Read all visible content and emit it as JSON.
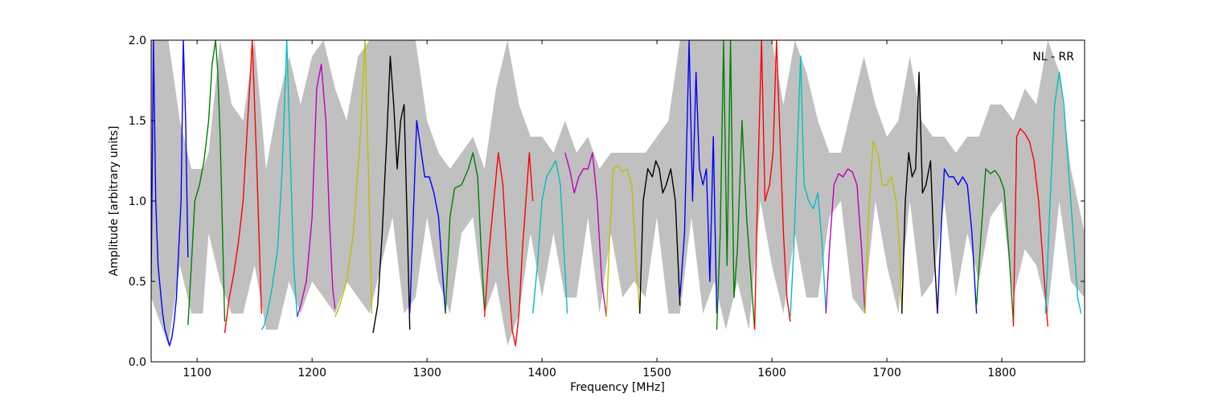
{
  "chart_data": {
    "type": "line",
    "title": "",
    "xlabel": "Frequency [MHz]",
    "ylabel": "Amplitude [arbitrary units]",
    "xlim": [
      1060,
      1872
    ],
    "ylim": [
      0.0,
      2.0
    ],
    "xticks": [
      1100,
      1200,
      1300,
      1400,
      1500,
      1600,
      1700,
      1800
    ],
    "xtick_labels": [
      "1100",
      "1200",
      "1300",
      "1400",
      "1500",
      "1600",
      "1700",
      "1800"
    ],
    "yticks": [
      0.0,
      0.5,
      1.0,
      1.5,
      2.0
    ],
    "ytick_labels": [
      "0.0",
      "0.5",
      "1.0",
      "1.5",
      "2.0"
    ],
    "grid": false,
    "annotation": "NL - RR",
    "annotation_position": "top-right",
    "background": {
      "color": "#c0c0c0",
      "x": [
        1060,
        1075,
        1085,
        1095,
        1105,
        1110,
        1120,
        1130,
        1140,
        1150,
        1160,
        1170,
        1180,
        1190,
        1200,
        1210,
        1220,
        1230,
        1240,
        1250,
        1260,
        1270,
        1280,
        1290,
        1300,
        1310,
        1320,
        1330,
        1340,
        1350,
        1360,
        1370,
        1380,
        1390,
        1400,
        1410,
        1420,
        1430,
        1440,
        1450,
        1460,
        1470,
        1480,
        1490,
        1500,
        1510,
        1520,
        1530,
        1540,
        1550,
        1560,
        1570,
        1580,
        1590,
        1600,
        1610,
        1620,
        1630,
        1640,
        1650,
        1660,
        1670,
        1680,
        1690,
        1700,
        1710,
        1720,
        1730,
        1740,
        1750,
        1760,
        1770,
        1780,
        1790,
        1800,
        1810,
        1820,
        1830,
        1840,
        1850,
        1860,
        1872
      ],
      "upper": [
        2.0,
        2.0,
        1.5,
        1.2,
        1.2,
        1.3,
        2.0,
        1.6,
        1.5,
        2.0,
        1.2,
        1.6,
        1.9,
        1.6,
        1.9,
        2.0,
        1.7,
        1.5,
        1.9,
        2.0,
        2.0,
        2.0,
        2.0,
        2.0,
        1.5,
        1.3,
        1.2,
        1.3,
        1.4,
        1.2,
        1.7,
        2.0,
        1.6,
        1.4,
        1.4,
        1.3,
        1.5,
        1.3,
        1.4,
        1.2,
        1.3,
        1.3,
        1.3,
        1.3,
        1.4,
        1.5,
        2.0,
        2.0,
        2.0,
        2.0,
        2.0,
        2.0,
        2.0,
        2.0,
        2.0,
        1.6,
        2.0,
        1.8,
        1.5,
        1.3,
        1.3,
        1.6,
        1.9,
        1.6,
        1.4,
        1.5,
        1.9,
        1.5,
        1.4,
        1.4,
        1.3,
        1.4,
        1.4,
        1.6,
        1.6,
        1.5,
        1.7,
        1.6,
        2.0,
        1.8,
        1.2,
        0.8
      ],
      "lower": [
        0.4,
        0.1,
        0.6,
        0.3,
        0.3,
        0.8,
        0.5,
        0.3,
        0.3,
        0.6,
        0.2,
        0.2,
        0.5,
        0.3,
        0.5,
        0.4,
        0.3,
        0.5,
        0.4,
        0.3,
        0.6,
        0.9,
        0.3,
        0.4,
        0.9,
        0.5,
        0.3,
        0.8,
        0.9,
        0.3,
        0.5,
        0.1,
        0.3,
        0.8,
        0.4,
        0.8,
        0.4,
        0.4,
        0.9,
        0.3,
        0.8,
        0.4,
        0.5,
        0.4,
        0.9,
        0.3,
        0.3,
        0.9,
        0.3,
        0.5,
        0.2,
        0.5,
        0.2,
        1.0,
        0.6,
        0.3,
        0.8,
        0.4,
        0.4,
        0.9,
        1.0,
        0.4,
        0.3,
        1.0,
        0.6,
        0.3,
        1.0,
        0.4,
        0.5,
        1.0,
        0.4,
        0.8,
        0.5,
        0.9,
        1.0,
        0.4,
        0.7,
        0.6,
        0.3,
        1.0,
        0.5,
        0.4
      ]
    },
    "series": [
      {
        "color": "#0000ff",
        "x": [
          1060,
          1062,
          1064,
          1066,
          1068,
          1070,
          1072,
          1074,
          1076,
          1078,
          1080,
          1082,
          1084,
          1086,
          1088,
          1090,
          1092
        ],
        "y": [
          0.5,
          2.0,
          1.0,
          0.6,
          0.45,
          0.3,
          0.2,
          0.15,
          0.1,
          0.15,
          0.25,
          0.4,
          0.7,
          1.0,
          2.0,
          1.5,
          0.65
        ]
      },
      {
        "color": "#008000",
        "x": [
          1092,
          1095,
          1098,
          1102,
          1106,
          1110,
          1113,
          1116,
          1118,
          1120,
          1124
        ],
        "y": [
          0.23,
          0.6,
          1.0,
          1.1,
          1.25,
          1.5,
          1.85,
          2.0,
          1.8,
          1.4,
          0.25
        ]
      },
      {
        "color": "#ff0000",
        "x": [
          1124,
          1128,
          1132,
          1136,
          1140,
          1144,
          1148,
          1152,
          1156
        ],
        "y": [
          0.18,
          0.4,
          0.55,
          0.75,
          1.0,
          1.5,
          2.0,
          1.2,
          0.3
        ]
      },
      {
        "color": "#00bfbf",
        "x": [
          1156,
          1158,
          1161,
          1165,
          1170,
          1174,
          1178,
          1181,
          1184,
          1187
        ],
        "y": [
          0.2,
          0.22,
          0.3,
          0.45,
          0.7,
          1.2,
          2.0,
          1.3,
          0.6,
          0.28
        ]
      },
      {
        "color": "#bf00bf",
        "x": [
          1187,
          1190,
          1195,
          1200,
          1204,
          1208,
          1212,
          1215,
          1218,
          1220
        ],
        "y": [
          0.28,
          0.35,
          0.5,
          0.9,
          1.7,
          1.85,
          1.5,
          0.9,
          0.45,
          0.33
        ]
      },
      {
        "color": "#bfbf00",
        "x": [
          1220,
          1224,
          1230,
          1236,
          1242,
          1246,
          1249,
          1252
        ],
        "y": [
          0.28,
          0.35,
          0.5,
          0.8,
          1.4,
          2.0,
          1.2,
          0.3
        ]
      },
      {
        "color": "#000000",
        "x": [
          1253,
          1257,
          1261,
          1265,
          1268,
          1271,
          1274,
          1277,
          1280,
          1283,
          1285
        ],
        "y": [
          0.18,
          0.35,
          0.8,
          1.4,
          1.9,
          1.6,
          1.2,
          1.5,
          1.6,
          0.8,
          0.2
        ]
      },
      {
        "color": "#0000ff",
        "x": [
          1285,
          1288,
          1291,
          1294,
          1298,
          1302,
          1306,
          1310,
          1313,
          1316
        ],
        "y": [
          0.3,
          0.9,
          1.5,
          1.35,
          1.15,
          1.15,
          1.05,
          0.9,
          0.6,
          0.3
        ]
      },
      {
        "color": "#008000",
        "x": [
          1316,
          1320,
          1324,
          1330,
          1336,
          1340,
          1344,
          1347,
          1350
        ],
        "y": [
          0.3,
          0.9,
          1.08,
          1.1,
          1.2,
          1.3,
          1.15,
          0.7,
          0.32
        ]
      },
      {
        "color": "#ff0000",
        "x": [
          1350,
          1354,
          1358,
          1362,
          1366,
          1370,
          1374,
          1377,
          1380,
          1383,
          1386,
          1389,
          1392
        ],
        "y": [
          0.28,
          0.7,
          1.0,
          1.3,
          1.1,
          0.6,
          0.2,
          0.1,
          0.3,
          0.7,
          1.0,
          1.3,
          1.0
        ]
      },
      {
        "color": "#00bfbf",
        "x": [
          1392,
          1396,
          1400,
          1404,
          1408,
          1412,
          1416,
          1419,
          1422
        ],
        "y": [
          0.3,
          0.6,
          1.0,
          1.15,
          1.2,
          1.25,
          1.1,
          0.7,
          0.3
        ]
      },
      {
        "color": "#bf00bf",
        "x": [
          1420,
          1424,
          1428,
          1432,
          1436,
          1440,
          1444,
          1448,
          1452,
          1456
        ],
        "y": [
          1.3,
          1.2,
          1.05,
          1.15,
          1.2,
          1.2,
          1.3,
          1.0,
          0.5,
          0.28
        ]
      },
      {
        "color": "#bfbf00",
        "x": [
          1456,
          1459,
          1462,
          1466,
          1470,
          1474,
          1478,
          1482,
          1485
        ],
        "y": [
          0.28,
          0.8,
          1.2,
          1.22,
          1.18,
          1.2,
          1.1,
          0.6,
          0.3
        ]
      },
      {
        "color": "#000000",
        "x": [
          1485,
          1488,
          1492,
          1496,
          1499,
          1502,
          1505,
          1508,
          1512,
          1516,
          1520
        ],
        "y": [
          0.3,
          1.0,
          1.2,
          1.15,
          1.25,
          1.2,
          1.05,
          1.1,
          1.2,
          1.0,
          0.35
        ]
      },
      {
        "color": "#0000ff",
        "x": [
          1520,
          1524,
          1528,
          1531,
          1534,
          1537,
          1540,
          1543,
          1546,
          1549,
          1552
        ],
        "y": [
          0.4,
          0.8,
          2.0,
          1.0,
          1.8,
          1.2,
          1.1,
          1.2,
          0.5,
          1.4,
          0.3
        ]
      },
      {
        "color": "#008000",
        "x": [
          1552,
          1555,
          1558,
          1561,
          1564,
          1567,
          1570,
          1574,
          1578,
          1582,
          1585
        ],
        "y": [
          0.2,
          0.8,
          2.0,
          0.6,
          2.0,
          0.4,
          0.7,
          1.5,
          0.9,
          0.5,
          0.2
        ]
      },
      {
        "color": "#ff0000",
        "x": [
          1585,
          1588,
          1591,
          1594,
          1598,
          1601,
          1604,
          1607,
          1610,
          1613,
          1616
        ],
        "y": [
          0.2,
          1.2,
          2.0,
          1.0,
          1.1,
          1.3,
          2.0,
          1.4,
          0.8,
          0.4,
          0.25
        ]
      },
      {
        "color": "#00bfbf",
        "x": [
          1616,
          1619,
          1622,
          1625,
          1628,
          1632,
          1636,
          1640,
          1644,
          1647
        ],
        "y": [
          0.28,
          0.7,
          1.3,
          1.9,
          1.1,
          1.0,
          0.95,
          1.05,
          0.7,
          0.3
        ]
      },
      {
        "color": "#bf00bf",
        "x": [
          1647,
          1650,
          1654,
          1658,
          1662,
          1666,
          1670,
          1674,
          1678,
          1681
        ],
        "y": [
          0.3,
          0.7,
          1.1,
          1.17,
          1.15,
          1.2,
          1.18,
          1.1,
          0.7,
          0.3
        ]
      },
      {
        "color": "#bfbf00",
        "x": [
          1681,
          1684,
          1688,
          1692,
          1696,
          1700,
          1704,
          1708,
          1711,
          1713
        ],
        "y": [
          0.3,
          0.9,
          1.37,
          1.3,
          1.1,
          1.1,
          1.15,
          1.0,
          0.7,
          0.3
        ]
      },
      {
        "color": "#000000",
        "x": [
          1713,
          1716,
          1719,
          1722,
          1725,
          1728,
          1731,
          1734,
          1738,
          1741,
          1744
        ],
        "y": [
          0.3,
          1.0,
          1.3,
          1.15,
          1.2,
          1.8,
          1.05,
          1.1,
          1.25,
          0.7,
          0.3
        ]
      },
      {
        "color": "#0000ff",
        "x": [
          1744,
          1747,
          1750,
          1754,
          1758,
          1762,
          1766,
          1770,
          1774,
          1778
        ],
        "y": [
          0.3,
          0.8,
          1.2,
          1.15,
          1.15,
          1.1,
          1.15,
          1.1,
          0.8,
          0.3
        ]
      },
      {
        "color": "#008000",
        "x": [
          1778,
          1782,
          1786,
          1790,
          1794,
          1798,
          1802,
          1806,
          1810
        ],
        "y": [
          0.35,
          0.8,
          1.2,
          1.17,
          1.19,
          1.15,
          1.07,
          0.7,
          0.25
        ]
      },
      {
        "color": "#ff0000",
        "x": [
          1810,
          1813,
          1816,
          1820,
          1824,
          1828,
          1832,
          1836,
          1840
        ],
        "y": [
          0.22,
          1.4,
          1.45,
          1.42,
          1.37,
          1.25,
          1.0,
          0.6,
          0.22
        ]
      },
      {
        "color": "#00bfbf",
        "x": [
          1838,
          1842,
          1846,
          1850,
          1854,
          1858,
          1862,
          1866,
          1869
        ],
        "y": [
          0.3,
          1.0,
          1.6,
          1.8,
          1.6,
          1.2,
          0.8,
          0.4,
          0.3
        ]
      }
    ]
  }
}
